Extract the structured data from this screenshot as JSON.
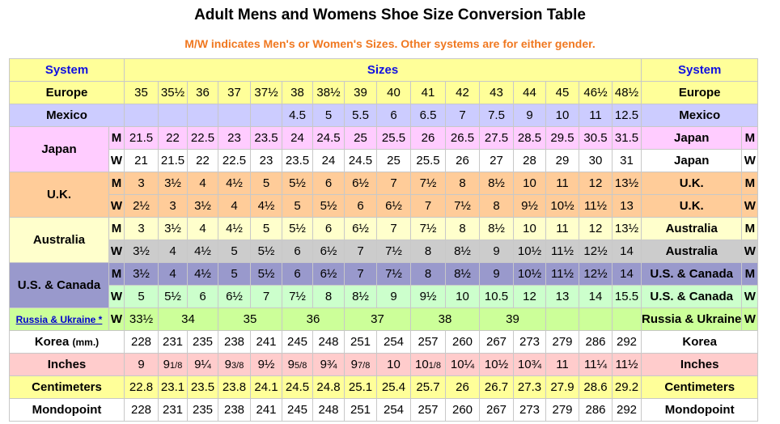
{
  "title": "Adult Mens and Womens Shoe Size Conversion Table",
  "subtitle": "M/W indicates Men's or Women's Sizes. Other systems are for either gender.",
  "header": {
    "system": "System",
    "sizes": "Sizes",
    "system_right": "System"
  },
  "colors": {
    "header": "#ffff99",
    "europe": "#ffff99",
    "mexico": "#ccccff",
    "japan_m": "#ffccff",
    "japan_w": "#ffffff",
    "uk": "#ffcc99",
    "australia_m": "#ffffcc",
    "australia_w": "#cccccc",
    "us_m": "#9999cc",
    "us_w": "#ccffcc",
    "russia": "#ccff99",
    "korea": "#ffffff",
    "inches": "#ffcccc",
    "centimeters": "#ffff99",
    "mondopoint": "#ffffff"
  },
  "rows": [
    {
      "key": "europe",
      "label": "Europe",
      "mw": "",
      "right": "Europe",
      "right_mw": "",
      "values": [
        "35",
        "35½",
        "36",
        "37",
        "37½",
        "38",
        "38½",
        "39",
        "40",
        "41",
        "42",
        "43",
        "44",
        "45",
        "46½",
        "48½"
      ]
    },
    {
      "key": "mexico",
      "label": "Mexico",
      "mw": "",
      "right": "Mexico",
      "right_mw": "",
      "values": [
        "",
        "",
        "",
        "",
        "",
        "4.5",
        "5",
        "5.5",
        "6",
        "6.5",
        "7",
        "7.5",
        "9",
        "10",
        "11",
        "12.5"
      ]
    },
    {
      "key": "japan_m",
      "label": "Japan",
      "mw": "M",
      "right": "Japan",
      "right_mw": "M",
      "values": [
        "21.5",
        "22",
        "22.5",
        "23",
        "23.5",
        "24",
        "24.5",
        "25",
        "25.5",
        "26",
        "26.5",
        "27.5",
        "28.5",
        "29.5",
        "30.5",
        "31.5"
      ]
    },
    {
      "key": "japan_w",
      "label": "Japan",
      "mw": "W",
      "right": "Japan",
      "right_mw": "W",
      "values": [
        "21",
        "21.5",
        "22",
        "22.5",
        "23",
        "23.5",
        "24",
        "24.5",
        "25",
        "25.5",
        "26",
        "27",
        "28",
        "29",
        "30",
        "31"
      ]
    },
    {
      "key": "uk_m",
      "label": "U.K.",
      "mw": "M",
      "right": "U.K.",
      "right_mw": "M",
      "values": [
        "3",
        "3½",
        "4",
        "4½",
        "5",
        "5½",
        "6",
        "6½",
        "7",
        "7½",
        "8",
        "8½",
        "10",
        "11",
        "12",
        "13½"
      ]
    },
    {
      "key": "uk_w",
      "label": "U.K.",
      "mw": "W",
      "right": "U.K.",
      "right_mw": "W",
      "values": [
        "2½",
        "3",
        "3½",
        "4",
        "4½",
        "5",
        "5½",
        "6",
        "6½",
        "7",
        "7½",
        "8",
        "9½",
        "10½",
        "11½",
        "13"
      ]
    },
    {
      "key": "australia_m",
      "label": "Australia",
      "mw": "M",
      "right": "Australia",
      "right_mw": "M",
      "values": [
        "3",
        "3½",
        "4",
        "4½",
        "5",
        "5½",
        "6",
        "6½",
        "7",
        "7½",
        "8",
        "8½",
        "10",
        "11",
        "12",
        "13½"
      ]
    },
    {
      "key": "australia_w",
      "label": "Australia",
      "mw": "W",
      "right": "Australia",
      "right_mw": "W",
      "values": [
        "3½",
        "4",
        "4½",
        "5",
        "5½",
        "6",
        "6½",
        "7",
        "7½",
        "8",
        "8½",
        "9",
        "10½",
        "11½",
        "12½",
        "14"
      ]
    },
    {
      "key": "us_m",
      "label": "U.S. & Canada",
      "mw": "M",
      "right": "U.S. & Canada",
      "right_mw": "M",
      "values": [
        "3½",
        "4",
        "4½",
        "5",
        "5½",
        "6",
        "6½",
        "7",
        "7½",
        "8",
        "8½",
        "9",
        "10½",
        "11½",
        "12½",
        "14"
      ]
    },
    {
      "key": "us_w",
      "label": "U.S. & Canada",
      "mw": "W",
      "right": "U.S. & Canada",
      "right_mw": "W",
      "values": [
        "5",
        "5½",
        "6",
        "6½",
        "7",
        "7½",
        "8",
        "8½",
        "9",
        "9½",
        "10",
        "10.5",
        "12",
        "13",
        "14",
        "15.5"
      ]
    },
    {
      "key": "russia",
      "label": "Russia & Ukraine *",
      "mw": "W",
      "right": "Russia & Ukraine",
      "right_mw": "W",
      "values": [
        "33½",
        "34",
        "",
        "35",
        "",
        "36",
        "",
        "37",
        "",
        "38",
        "",
        "39",
        "",
        "",
        "",
        ""
      ]
    },
    {
      "key": "korea",
      "label": "Korea",
      "label_suffix": "(mm.)",
      "mw": "",
      "right": "Korea",
      "right_mw": "",
      "values": [
        "228",
        "231",
        "235",
        "238",
        "241",
        "245",
        "248",
        "251",
        "254",
        "257",
        "260",
        "267",
        "273",
        "279",
        "286",
        "292"
      ]
    },
    {
      "key": "inches",
      "label": "Inches",
      "mw": "",
      "right": "Inches",
      "right_mw": "",
      "values": [
        "9",
        "91/8",
        "9¼",
        "93/8",
        "9½",
        "95/8",
        "9¾",
        "97/8",
        "10",
        "101/8",
        "10¼",
        "10½",
        "10¾",
        "11",
        "11¼",
        "11½"
      ]
    },
    {
      "key": "centimeters",
      "label": "Centimeters",
      "mw": "",
      "right": "Centimeters",
      "right_mw": "",
      "values": [
        "22.8",
        "23.1",
        "23.5",
        "23.8",
        "24.1",
        "24.5",
        "24.8",
        "25.1",
        "25.4",
        "25.7",
        "26",
        "26.7",
        "27.3",
        "27.9",
        "28.6",
        "29.2"
      ]
    },
    {
      "key": "mondopoint",
      "label": "Mondopoint",
      "mw": "",
      "right": "Mondopoint",
      "right_mw": "",
      "values": [
        "228",
        "231",
        "235",
        "238",
        "241",
        "245",
        "248",
        "251",
        "254",
        "257",
        "260",
        "267",
        "273",
        "279",
        "286",
        "292"
      ]
    }
  ]
}
